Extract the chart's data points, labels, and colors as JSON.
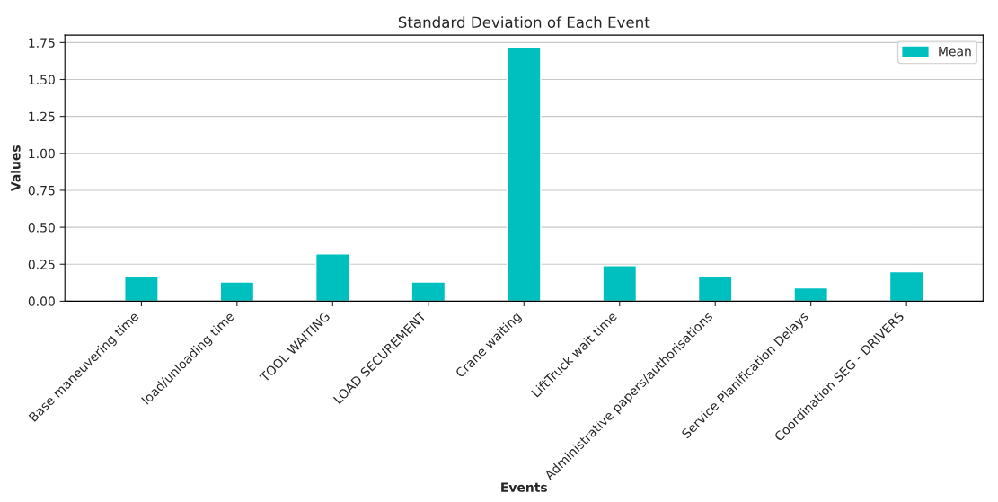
{
  "chart_data": {
    "type": "bar",
    "title": "Standard Deviation of Each Event",
    "xlabel": "Events",
    "ylabel": "Values",
    "categories": [
      "Base maneuvering time",
      "load/unloading time",
      "TOOL WAITING",
      "LOAD SECUREMENT",
      "Crane waiting",
      "LiftTruck wait time",
      "Administrative papers/authorisations",
      "Service Planification Delays",
      "Coordination SEG - DRIVERS"
    ],
    "series": [
      {
        "name": "Mean",
        "color": "#00bfbf",
        "values": [
          0.17,
          0.13,
          0.32,
          0.13,
          1.72,
          0.24,
          0.17,
          0.09,
          0.2
        ]
      }
    ],
    "ylim": [
      0,
      1.8
    ],
    "yticks": [
      {
        "value": 0,
        "label": "0.00"
      },
      {
        "value": 0.25,
        "label": "0.25"
      },
      {
        "value": 0.5,
        "label": "0.50"
      },
      {
        "value": 0.75,
        "label": "0.75"
      },
      {
        "value": 1.0,
        "label": "1.00"
      },
      {
        "value": 1.25,
        "label": "1.25"
      },
      {
        "value": 1.5,
        "label": "1.50"
      },
      {
        "value": 1.75,
        "label": "1.75"
      }
    ],
    "grid": "y",
    "legend": "top right"
  }
}
